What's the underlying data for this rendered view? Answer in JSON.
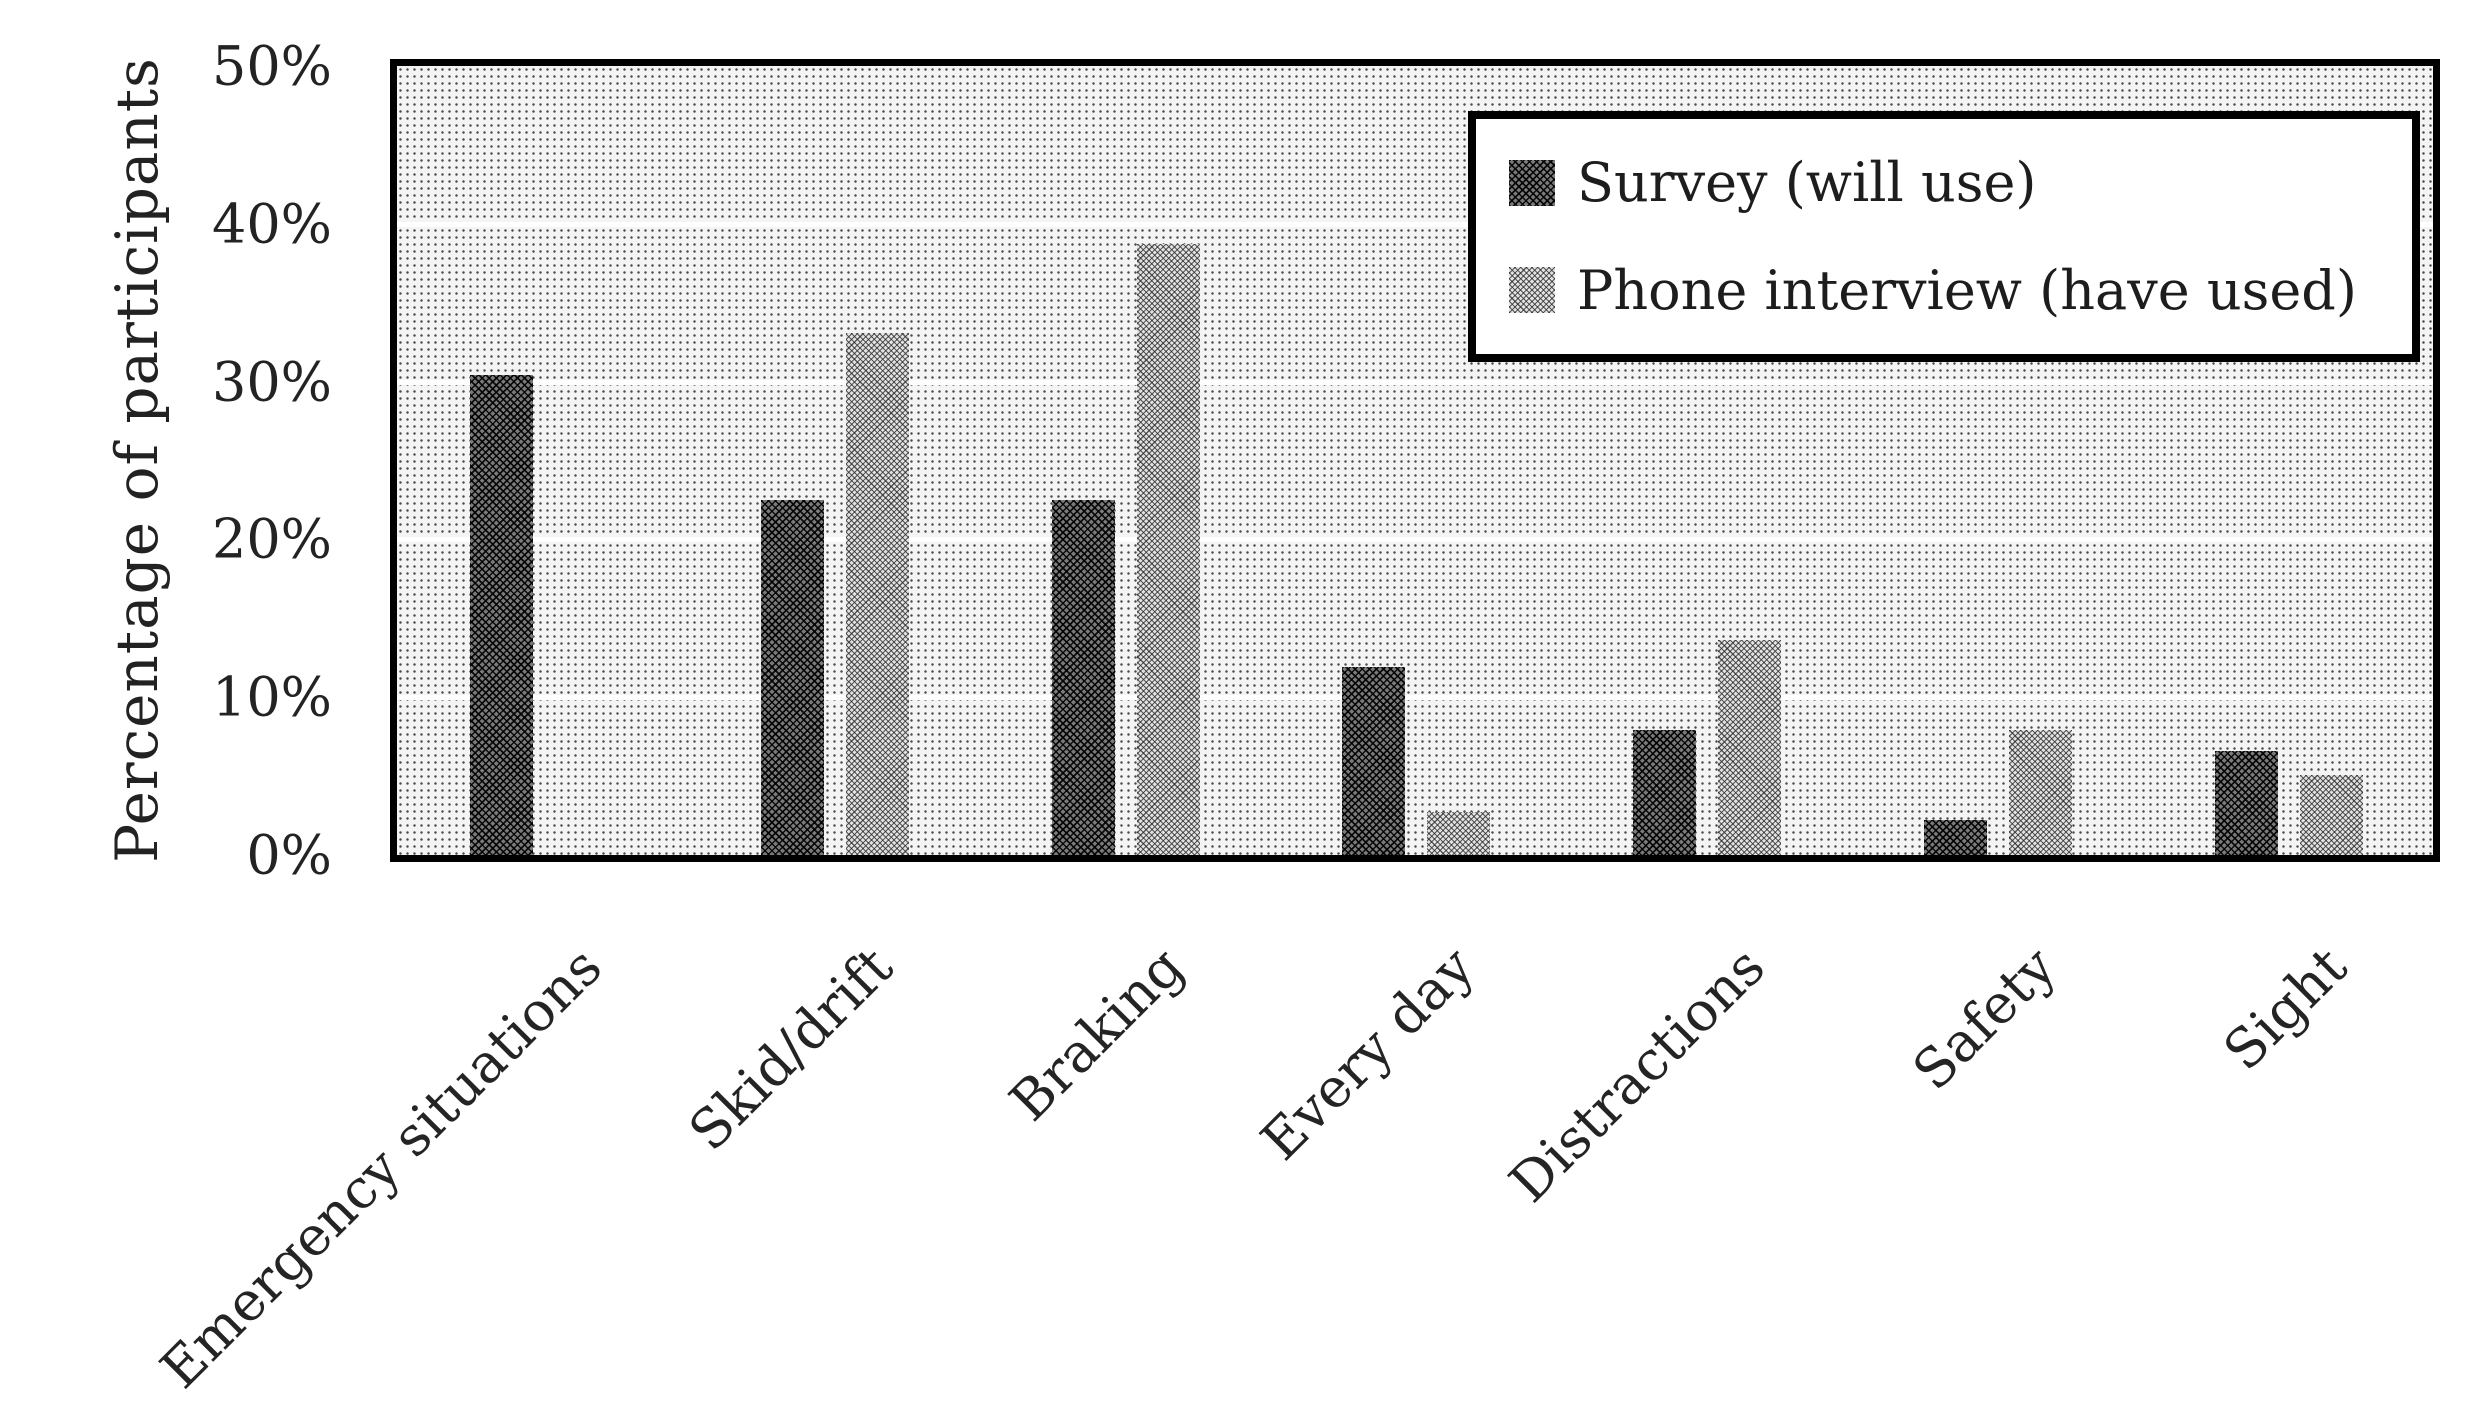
{
  "chart_data": {
    "type": "bar",
    "title": "",
    "xlabel": "",
    "ylabel": "Percentage of participants",
    "categories": [
      "Emergency situations",
      "Skid/drift",
      "Braking",
      "Every day",
      "Distractions",
      "Safety",
      "Sight"
    ],
    "series": [
      {
        "name": "Survey (will use)",
        "style": "dark-crosshatch",
        "values": [
          30.4,
          22.5,
          22.5,
          11.9,
          7.9,
          2.2,
          6.6
        ]
      },
      {
        "name": "Phone interview (have used)",
        "style": "light-crosshatch",
        "values": [
          null,
          33.1,
          38.7,
          2.7,
          13.6,
          7.9,
          5.1
        ]
      }
    ],
    "y_axis": {
      "min": 0,
      "max": 50,
      "tick_interval": 10,
      "tick_labels": [
        "0%",
        "10%",
        "20%",
        "30%",
        "40%",
        "50%"
      ],
      "format": "percent"
    },
    "gridlines": "horizontal-white",
    "legend_position": "top-right",
    "colors": {
      "dark_series": "#414141",
      "light_series": "#b0b0b0",
      "plot_background": "#e8e8e8",
      "gridline": "#ffffff",
      "border": "#000000"
    }
  }
}
